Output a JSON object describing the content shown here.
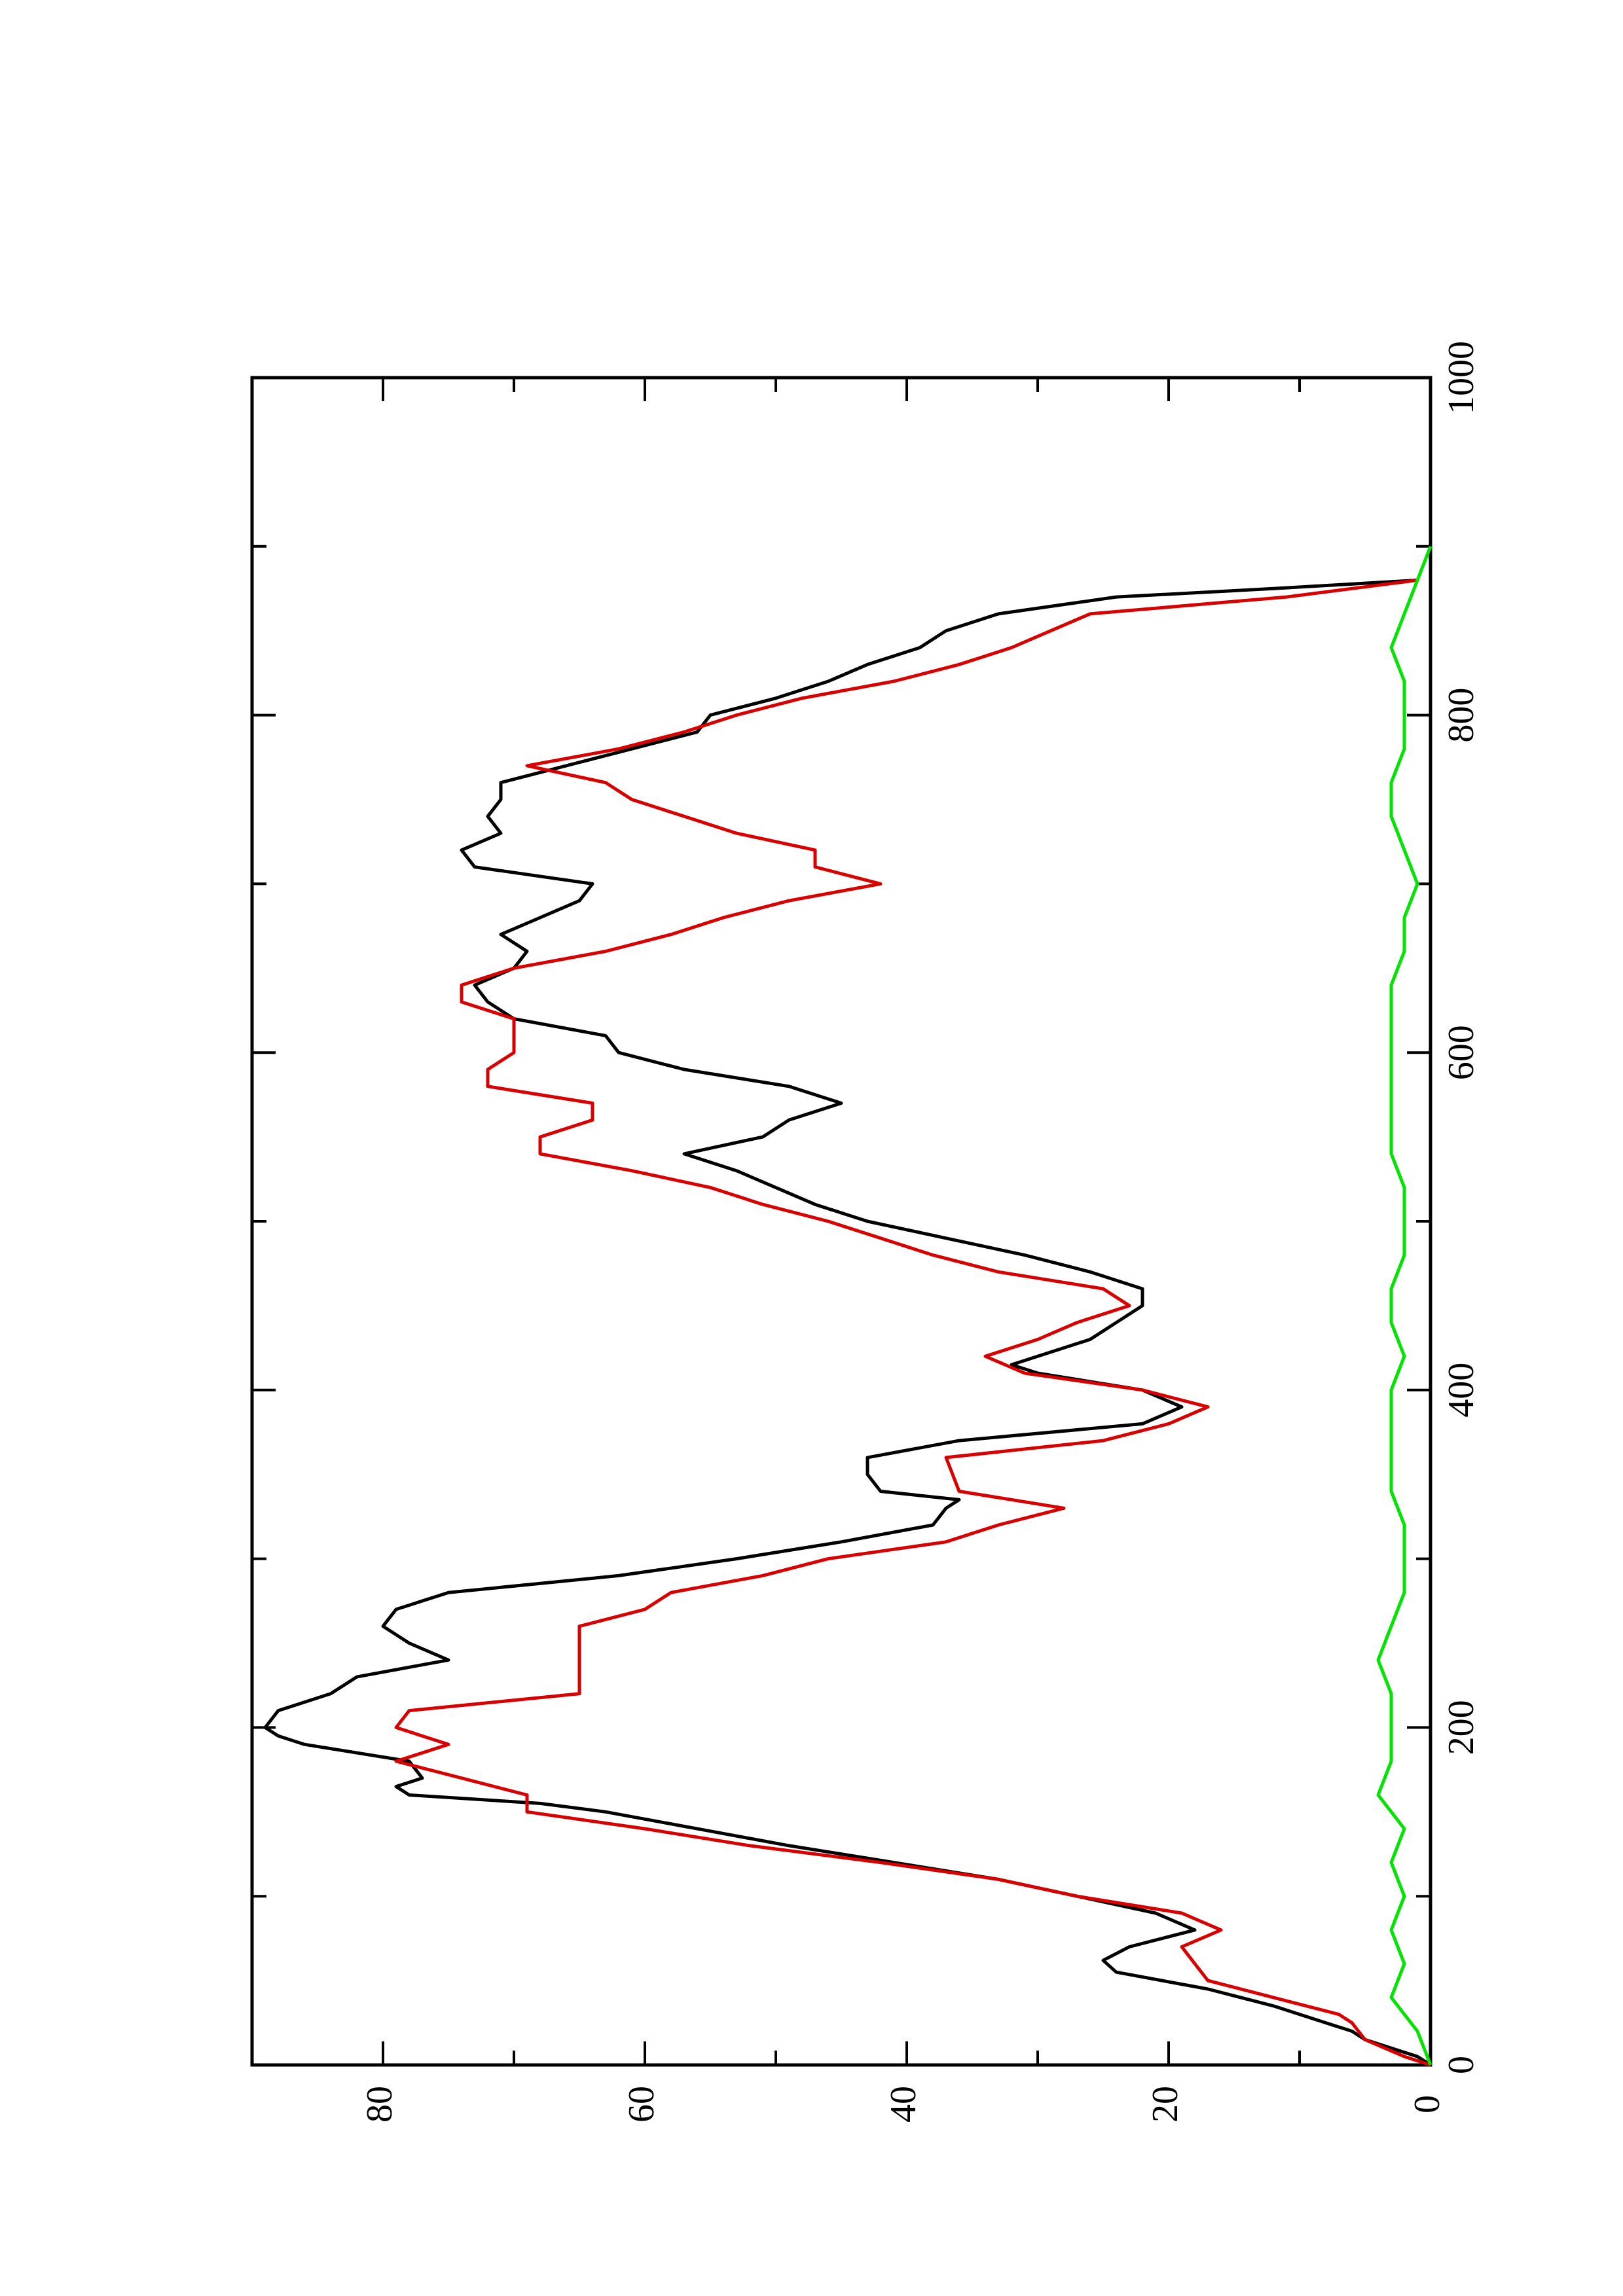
{
  "chart_data": {
    "type": "line",
    "orientation": "rotated-90-ccw",
    "title": "",
    "xlabel": "",
    "ylabel": "",
    "xlim": [
      0,
      1000
    ],
    "ylim": [
      0,
      90
    ],
    "x_ticks": [
      0,
      200,
      400,
      600,
      800,
      1000
    ],
    "y_ticks": [
      0,
      20,
      40,
      60,
      80
    ],
    "grid": false,
    "legend": "none",
    "series": [
      {
        "color": "#000000",
        "points": [
          [
            0,
            0
          ],
          [
            5,
            1
          ],
          [
            10,
            3
          ],
          [
            15,
            5
          ],
          [
            20,
            6
          ],
          [
            25,
            8
          ],
          [
            35,
            12
          ],
          [
            45,
            17
          ],
          [
            55,
            24
          ],
          [
            62,
            25
          ],
          [
            70,
            23
          ],
          [
            80,
            18
          ],
          [
            90,
            21
          ],
          [
            100,
            27
          ],
          [
            110,
            33
          ],
          [
            120,
            41
          ],
          [
            130,
            49
          ],
          [
            140,
            56
          ],
          [
            150,
            63
          ],
          [
            155,
            68
          ],
          [
            160,
            78
          ],
          [
            165,
            79
          ],
          [
            170,
            77
          ],
          [
            180,
            78
          ],
          [
            190,
            86
          ],
          [
            195,
            88
          ],
          [
            200,
            89
          ],
          [
            210,
            88
          ],
          [
            220,
            84
          ],
          [
            230,
            82
          ],
          [
            240,
            75
          ],
          [
            250,
            78
          ],
          [
            260,
            80
          ],
          [
            270,
            79
          ],
          [
            280,
            75
          ],
          [
            290,
            62
          ],
          [
            300,
            53
          ],
          [
            310,
            45
          ],
          [
            320,
            38
          ],
          [
            330,
            37
          ],
          [
            335,
            36
          ],
          [
            340,
            42
          ],
          [
            350,
            43
          ],
          [
            360,
            43
          ],
          [
            370,
            36
          ],
          [
            380,
            22
          ],
          [
            390,
            19
          ],
          [
            400,
            22
          ],
          [
            410,
            30
          ],
          [
            415,
            32
          ],
          [
            420,
            30
          ],
          [
            430,
            26
          ],
          [
            435,
            25
          ],
          [
            440,
            24
          ],
          [
            450,
            22
          ],
          [
            460,
            22
          ],
          [
            470,
            26
          ],
          [
            480,
            31
          ],
          [
            490,
            37
          ],
          [
            500,
            43
          ],
          [
            510,
            47
          ],
          [
            520,
            50
          ],
          [
            530,
            53
          ],
          [
            540,
            57
          ],
          [
            550,
            51
          ],
          [
            560,
            49
          ],
          [
            570,
            45
          ],
          [
            580,
            49
          ],
          [
            590,
            57
          ],
          [
            600,
            62
          ],
          [
            610,
            63
          ],
          [
            620,
            70
          ],
          [
            630,
            72
          ],
          [
            640,
            73
          ],
          [
            650,
            70
          ],
          [
            660,
            69
          ],
          [
            670,
            71
          ],
          [
            680,
            68
          ],
          [
            690,
            65
          ],
          [
            700,
            64
          ],
          [
            710,
            73
          ],
          [
            720,
            74
          ],
          [
            730,
            71
          ],
          [
            740,
            72
          ],
          [
            750,
            71
          ],
          [
            760,
            71
          ],
          [
            770,
            66
          ],
          [
            780,
            61
          ],
          [
            790,
            56
          ],
          [
            800,
            55
          ],
          [
            810,
            50
          ],
          [
            820,
            46
          ],
          [
            830,
            43
          ],
          [
            840,
            39
          ],
          [
            850,
            37
          ],
          [
            860,
            33
          ],
          [
            870,
            24
          ],
          [
            875,
            12
          ],
          [
            880,
            1
          ]
        ]
      },
      {
        "color": "#d90000",
        "points": [
          [
            0,
            0
          ],
          [
            5,
            2
          ],
          [
            15,
            5
          ],
          [
            25,
            6
          ],
          [
            30,
            7
          ],
          [
            40,
            12
          ],
          [
            50,
            17
          ],
          [
            60,
            18
          ],
          [
            70,
            19
          ],
          [
            80,
            16
          ],
          [
            90,
            19
          ],
          [
            100,
            27
          ],
          [
            110,
            33
          ],
          [
            120,
            42
          ],
          [
            130,
            52
          ],
          [
            140,
            60
          ],
          [
            150,
            69
          ],
          [
            160,
            69
          ],
          [
            170,
            74
          ],
          [
            180,
            79
          ],
          [
            190,
            75
          ],
          [
            200,
            79
          ],
          [
            210,
            78
          ],
          [
            220,
            65
          ],
          [
            240,
            65
          ],
          [
            260,
            65
          ],
          [
            270,
            60
          ],
          [
            280,
            58
          ],
          [
            290,
            51
          ],
          [
            300,
            46
          ],
          [
            310,
            37
          ],
          [
            320,
            33
          ],
          [
            330,
            28
          ],
          [
            340,
            36
          ],
          [
            360,
            37
          ],
          [
            370,
            25
          ],
          [
            380,
            20
          ],
          [
            390,
            17
          ],
          [
            400,
            22
          ],
          [
            410,
            31
          ],
          [
            420,
            34
          ],
          [
            430,
            30
          ],
          [
            440,
            27
          ],
          [
            450,
            23
          ],
          [
            460,
            25
          ],
          [
            470,
            33
          ],
          [
            480,
            38
          ],
          [
            490,
            42
          ],
          [
            500,
            46
          ],
          [
            510,
            51
          ],
          [
            520,
            55
          ],
          [
            530,
            61
          ],
          [
            540,
            68
          ],
          [
            550,
            68
          ],
          [
            560,
            64
          ],
          [
            570,
            64
          ],
          [
            580,
            72
          ],
          [
            590,
            72
          ],
          [
            600,
            70
          ],
          [
            610,
            70
          ],
          [
            620,
            70
          ],
          [
            630,
            74
          ],
          [
            640,
            74
          ],
          [
            650,
            70
          ],
          [
            660,
            63
          ],
          [
            670,
            58
          ],
          [
            680,
            54
          ],
          [
            690,
            49
          ],
          [
            700,
            42
          ],
          [
            710,
            47
          ],
          [
            720,
            47
          ],
          [
            730,
            53
          ],
          [
            740,
            57
          ],
          [
            750,
            61
          ],
          [
            760,
            63
          ],
          [
            770,
            69
          ],
          [
            780,
            62
          ],
          [
            790,
            57
          ],
          [
            800,
            53
          ],
          [
            810,
            48
          ],
          [
            820,
            41
          ],
          [
            830,
            36
          ],
          [
            840,
            32
          ],
          [
            850,
            29
          ],
          [
            860,
            26
          ],
          [
            870,
            11
          ],
          [
            880,
            1
          ]
        ]
      },
      {
        "color": "#00e400",
        "points": [
          [
            0,
            0
          ],
          [
            20,
            1
          ],
          [
            40,
            3
          ],
          [
            60,
            2
          ],
          [
            80,
            3
          ],
          [
            100,
            2
          ],
          [
            120,
            3
          ],
          [
            140,
            2
          ],
          [
            160,
            4
          ],
          [
            180,
            3
          ],
          [
            200,
            3
          ],
          [
            220,
            3
          ],
          [
            240,
            4
          ],
          [
            260,
            3
          ],
          [
            280,
            2
          ],
          [
            300,
            2
          ],
          [
            320,
            2
          ],
          [
            340,
            3
          ],
          [
            360,
            3
          ],
          [
            380,
            3
          ],
          [
            400,
            3
          ],
          [
            420,
            2
          ],
          [
            440,
            3
          ],
          [
            460,
            3
          ],
          [
            480,
            2
          ],
          [
            500,
            2
          ],
          [
            520,
            2
          ],
          [
            540,
            3
          ],
          [
            560,
            3
          ],
          [
            580,
            3
          ],
          [
            600,
            3
          ],
          [
            620,
            3
          ],
          [
            640,
            3
          ],
          [
            660,
            2
          ],
          [
            680,
            2
          ],
          [
            700,
            1
          ],
          [
            720,
            2
          ],
          [
            740,
            3
          ],
          [
            760,
            3
          ],
          [
            780,
            2
          ],
          [
            800,
            2
          ],
          [
            820,
            2
          ],
          [
            840,
            3
          ],
          [
            860,
            2
          ],
          [
            880,
            1
          ],
          [
            900,
            0
          ]
        ]
      }
    ]
  }
}
